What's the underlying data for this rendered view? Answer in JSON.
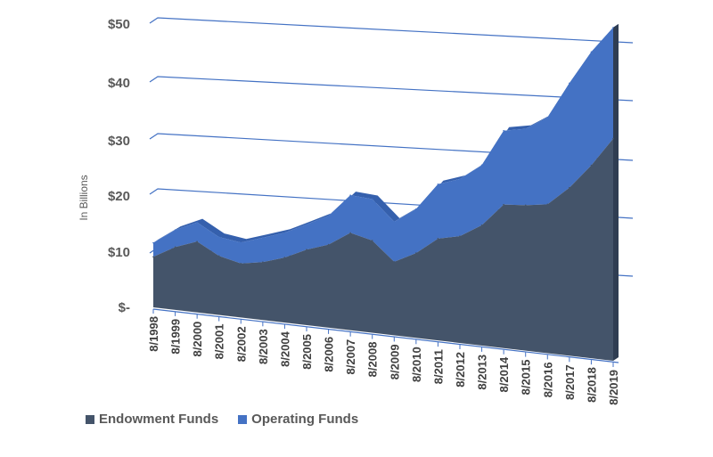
{
  "chart_data": {
    "type": "area",
    "stacked": true,
    "three_d": true,
    "title": "",
    "xlabel": "",
    "ylabel": "In Billions",
    "ylim": [
      0,
      50
    ],
    "ytick_values": [
      0,
      10,
      20,
      30,
      40,
      50
    ],
    "ytick_labels": [
      "$-",
      "$10",
      "$20",
      "$30",
      "$40",
      "$50"
    ],
    "grid": true,
    "legend_position": "bottom-left",
    "categories": [
      "8/1998",
      "8/1999",
      "8/2000",
      "8/2001",
      "8/2002",
      "8/2003",
      "8/2004",
      "8/2005",
      "8/2006",
      "8/2007",
      "8/2008",
      "8/2009",
      "8/2010",
      "8/2011",
      "8/2012",
      "8/2013",
      "8/2014",
      "8/2015",
      "8/2016",
      "8/2017",
      "8/2018",
      "8/2019"
    ],
    "series": [
      {
        "name": "Endowment Funds",
        "color": "#44546a",
        "values": [
          9.0,
          11.0,
          12.2,
          10.0,
          9.0,
          9.5,
          10.5,
          12.0,
          13.0,
          15.0,
          14.0,
          11.0,
          12.5,
          14.8,
          15.3,
          17.0,
          20.0,
          20.0,
          20.2,
          22.5,
          25.5,
          29.0
        ]
      },
      {
        "name": "Operating Funds",
        "color": "#4472c4",
        "values": [
          2.5,
          3.0,
          3.3,
          3.2,
          3.5,
          4.0,
          4.0,
          4.0,
          4.5,
          5.8,
          6.3,
          6.0,
          6.5,
          7.9,
          8.2,
          8.5,
          10.3,
          10.5,
          11.8,
          14.0,
          15.0,
          14.5
        ]
      }
    ]
  }
}
